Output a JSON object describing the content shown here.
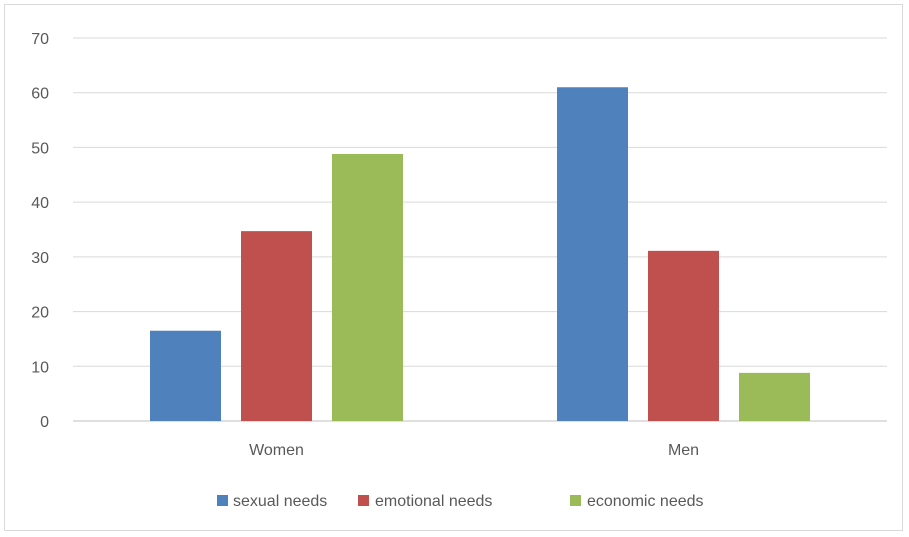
{
  "chart_data": {
    "type": "bar",
    "title": "",
    "xlabel": "",
    "ylabel": "",
    "categories": [
      "Women",
      "Men"
    ],
    "series": [
      {
        "name": "sexual needs",
        "values": [
          16.5,
          61
        ],
        "color": "#4f81bd"
      },
      {
        "name": "emotional needs",
        "values": [
          34.7,
          31.1
        ],
        "color": "#c0504d"
      },
      {
        "name": "economic needs",
        "values": [
          48.8,
          8.8
        ],
        "color": "#9bbb59"
      }
    ],
    "ylim": [
      0,
      70
    ],
    "yticks": [
      0,
      10,
      20,
      30,
      40,
      50,
      60,
      70
    ],
    "grid": true,
    "legend": "bottom"
  }
}
